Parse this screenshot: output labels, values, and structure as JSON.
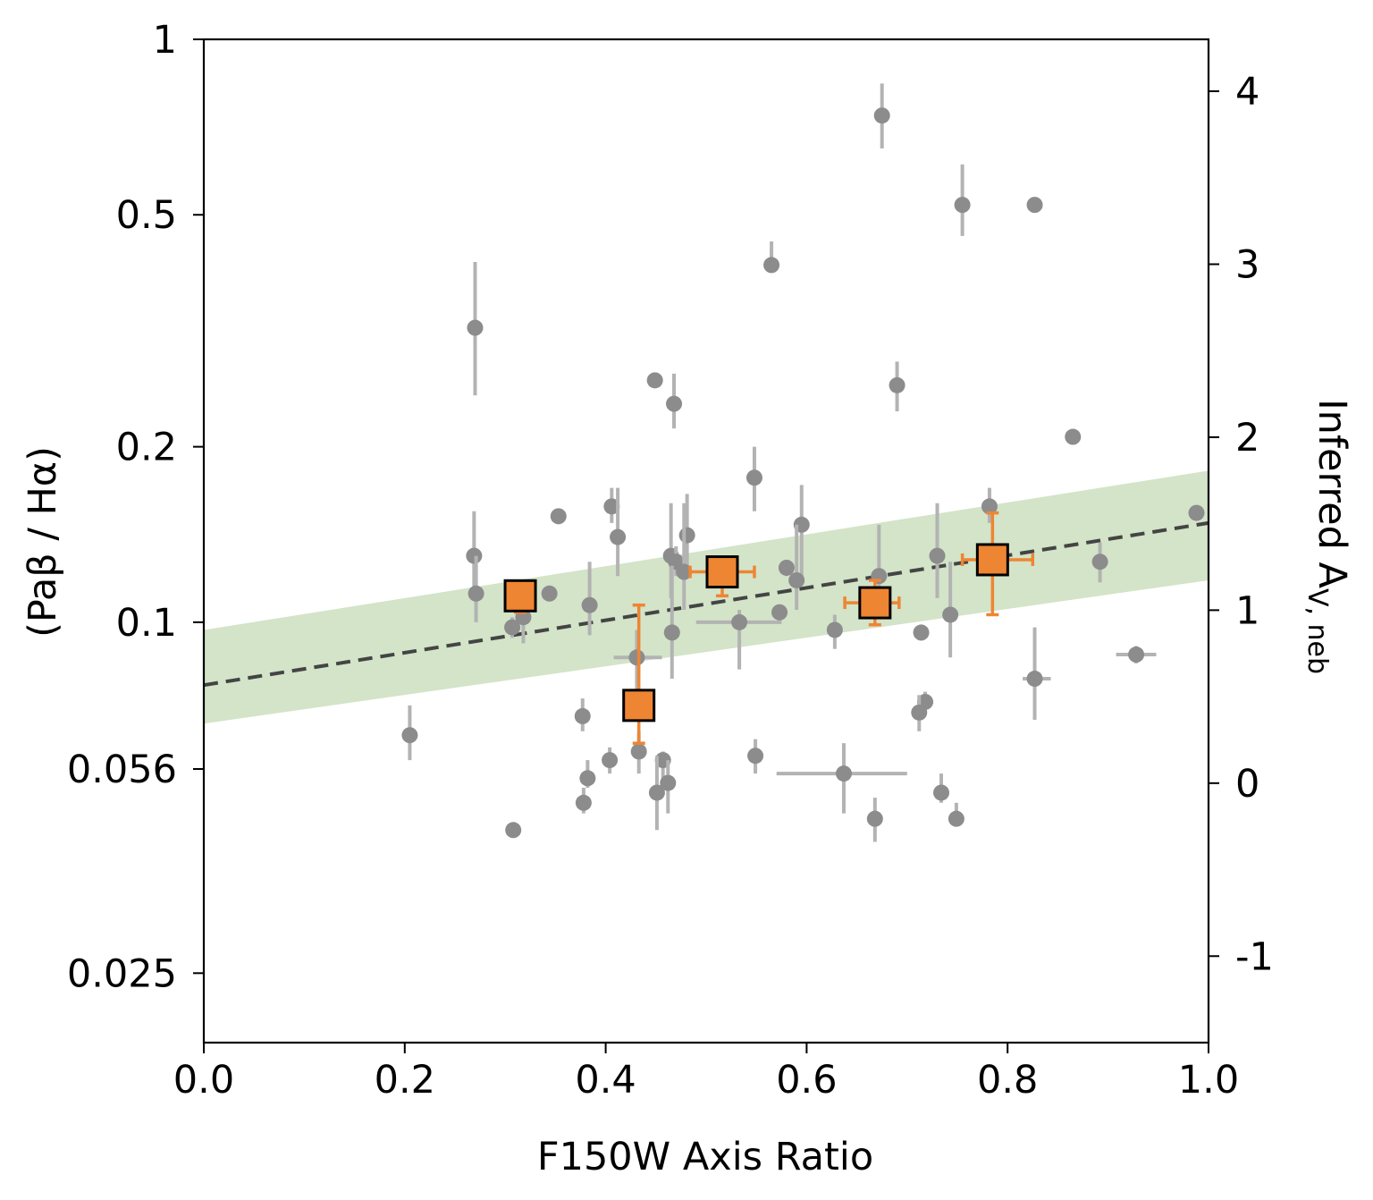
{
  "chart_data": {
    "type": "scatter",
    "xlabel": "F150W Axis Ratio",
    "ylabel": "(Paβ / Hα)",
    "y2label": "Inferred A",
    "y2label_sub": "V, neb",
    "xlim": [
      0.0,
      1.0
    ],
    "ylim": [
      0.019,
      1.0
    ],
    "yscale": "log",
    "y2lim": [
      -1.5,
      4.3
    ],
    "x_ticks": [
      "0.0",
      "0.2",
      "0.4",
      "0.6",
      "0.8",
      "1.0"
    ],
    "y_ticks": [
      {
        "value": 1.0,
        "label": "1"
      },
      {
        "value": 0.5,
        "label": "0.5"
      },
      {
        "value": 0.2,
        "label": "0.2"
      },
      {
        "value": 0.1,
        "label": "0.1"
      },
      {
        "value": 0.056,
        "label": "0.056"
      },
      {
        "value": 0.025,
        "label": "0.025"
      }
    ],
    "y2_ticks": [
      {
        "value": 4,
        "label": "4"
      },
      {
        "value": 3,
        "label": "3"
      },
      {
        "value": 2,
        "label": "2"
      },
      {
        "value": 1,
        "label": "1"
      },
      {
        "value": 0,
        "label": "0"
      },
      {
        "value": -1,
        "label": "-1"
      }
    ],
    "grid": false,
    "colors": {
      "points": "#8c8c8c",
      "point_errors": "#b3b3b3",
      "binned": "#ee8533",
      "binned_edge": "#000000",
      "fit_line": "#444444",
      "band": "#d3e4c9"
    },
    "fit_line": {
      "x": [
        0.0,
        1.0
      ],
      "y": [
        0.078,
        0.148
      ]
    },
    "confidence_band": {
      "x": [
        0.0,
        1.0
      ],
      "lower": [
        0.067,
        0.118
      ],
      "upper": [
        0.097,
        0.182
      ]
    },
    "points": [
      {
        "x": 0.675,
        "y": 0.74,
        "ylo": 0.65,
        "yhi": 0.84
      },
      {
        "x": 0.755,
        "y": 0.52,
        "ylo": 0.46,
        "yhi": 0.61
      },
      {
        "x": 0.827,
        "y": 0.52,
        "ylo": 0.52,
        "yhi": 0.52
      },
      {
        "x": 0.565,
        "y": 0.41,
        "ylo": 0.4,
        "yhi": 0.45
      },
      {
        "x": 0.27,
        "y": 0.32,
        "ylo": 0.245,
        "yhi": 0.415
      },
      {
        "x": 0.449,
        "y": 0.26,
        "ylo": 0.26,
        "yhi": 0.26
      },
      {
        "x": 0.69,
        "y": 0.255,
        "ylo": 0.23,
        "yhi": 0.28
      },
      {
        "x": 0.468,
        "y": 0.237,
        "ylo": 0.215,
        "yhi": 0.267
      },
      {
        "x": 0.865,
        "y": 0.208,
        "ylo": 0.203,
        "yhi": 0.213
      },
      {
        "x": 0.548,
        "y": 0.177,
        "ylo": 0.155,
        "yhi": 0.2
      },
      {
        "x": 0.406,
        "y": 0.158,
        "ylo": 0.148,
        "yhi": 0.17
      },
      {
        "x": 0.353,
        "y": 0.152,
        "ylo": 0.152,
        "yhi": 0.152
      },
      {
        "x": 0.782,
        "y": 0.158,
        "ylo": 0.148,
        "yhi": 0.17
      },
      {
        "x": 0.988,
        "y": 0.154,
        "ylo": 0.154,
        "yhi": 0.154
      },
      {
        "x": 0.595,
        "y": 0.147,
        "ylo": 0.12,
        "yhi": 0.172
      },
      {
        "x": 0.481,
        "y": 0.141,
        "ylo": 0.12,
        "yhi": 0.166
      },
      {
        "x": 0.412,
        "y": 0.14,
        "ylo": 0.12,
        "yhi": 0.17
      },
      {
        "x": 0.269,
        "y": 0.13,
        "ylo": 0.111,
        "yhi": 0.155
      },
      {
        "x": 0.465,
        "y": 0.13,
        "ylo": 0.11,
        "yhi": 0.16
      },
      {
        "x": 0.73,
        "y": 0.13,
        "ylo": 0.11,
        "yhi": 0.16
      },
      {
        "x": 0.892,
        "y": 0.127,
        "ylo": 0.117,
        "yhi": 0.137
      },
      {
        "x": 0.47,
        "y": 0.127,
        "ylo": 0.12,
        "yhi": 0.135
      },
      {
        "x": 0.478,
        "y": 0.122,
        "ylo": 0.105,
        "yhi": 0.16
      },
      {
        "x": 0.58,
        "y": 0.124,
        "ylo": 0.12,
        "yhi": 0.128
      },
      {
        "x": 0.59,
        "y": 0.118,
        "ylo": 0.105,
        "yhi": 0.147
      },
      {
        "x": 0.672,
        "y": 0.12,
        "ylo": 0.107,
        "yhi": 0.147
      },
      {
        "x": 0.271,
        "y": 0.112,
        "ylo": 0.1,
        "yhi": 0.13
      },
      {
        "x": 0.344,
        "y": 0.112,
        "ylo": 0.109,
        "yhi": 0.115
      },
      {
        "x": 0.384,
        "y": 0.107,
        "ylo": 0.095,
        "yhi": 0.127
      },
      {
        "x": 0.573,
        "y": 0.104,
        "ylo": 0.1,
        "yhi": 0.107
      },
      {
        "x": 0.743,
        "y": 0.103,
        "ylo": 0.087,
        "yhi": 0.127
      },
      {
        "x": 0.533,
        "y": 0.1,
        "ylo": 0.083,
        "yhi": 0.105,
        "xlo": 0.49,
        "xhi": 0.575
      },
      {
        "x": 0.307,
        "y": 0.098,
        "ylo": 0.094,
        "yhi": 0.102
      },
      {
        "x": 0.318,
        "y": 0.102,
        "ylo": 0.092,
        "yhi": 0.115
      },
      {
        "x": 0.628,
        "y": 0.097,
        "ylo": 0.09,
        "yhi": 0.103
      },
      {
        "x": 0.466,
        "y": 0.096,
        "ylo": 0.08,
        "yhi": 0.125
      },
      {
        "x": 0.714,
        "y": 0.096,
        "ylo": 0.093,
        "yhi": 0.099
      },
      {
        "x": 0.431,
        "y": 0.087,
        "ylo": 0.07,
        "yhi": 0.097,
        "xlo": 0.408,
        "xhi": 0.456
      },
      {
        "x": 0.928,
        "y": 0.088,
        "ylo": 0.085,
        "yhi": 0.091,
        "xlo": 0.908,
        "xhi": 0.948
      },
      {
        "x": 0.827,
        "y": 0.08,
        "ylo": 0.068,
        "yhi": 0.098,
        "xlo": 0.815,
        "xhi": 0.843
      },
      {
        "x": 0.718,
        "y": 0.073,
        "ylo": 0.07,
        "yhi": 0.076,
        "xlo": 0.71,
        "xhi": 0.726
      },
      {
        "x": 0.377,
        "y": 0.069,
        "ylo": 0.065,
        "yhi": 0.074
      },
      {
        "x": 0.712,
        "y": 0.07,
        "ylo": 0.065,
        "yhi": 0.075
      },
      {
        "x": 0.205,
        "y": 0.064,
        "ylo": 0.058,
        "yhi": 0.072
      },
      {
        "x": 0.549,
        "y": 0.059,
        "ylo": 0.055,
        "yhi": 0.063
      },
      {
        "x": 0.404,
        "y": 0.058,
        "ylo": 0.055,
        "yhi": 0.061
      },
      {
        "x": 0.457,
        "y": 0.058,
        "ylo": 0.054,
        "yhi": 0.06
      },
      {
        "x": 0.433,
        "y": 0.06,
        "ylo": 0.055,
        "yhi": 0.065
      },
      {
        "x": 0.637,
        "y": 0.055,
        "ylo": 0.047,
        "yhi": 0.062,
        "xlo": 0.57,
        "xhi": 0.7
      },
      {
        "x": 0.382,
        "y": 0.054,
        "ylo": 0.052,
        "yhi": 0.058
      },
      {
        "x": 0.462,
        "y": 0.053,
        "ylo": 0.047,
        "yhi": 0.058
      },
      {
        "x": 0.451,
        "y": 0.051,
        "ylo": 0.044,
        "yhi": 0.059
      },
      {
        "x": 0.734,
        "y": 0.051,
        "ylo": 0.049,
        "yhi": 0.055
      },
      {
        "x": 0.378,
        "y": 0.049,
        "ylo": 0.047,
        "yhi": 0.052
      },
      {
        "x": 0.668,
        "y": 0.046,
        "ylo": 0.042,
        "yhi": 0.05
      },
      {
        "x": 0.749,
        "y": 0.046,
        "ylo": 0.045,
        "yhi": 0.049
      },
      {
        "x": 0.308,
        "y": 0.044,
        "ylo": 0.043,
        "yhi": 0.045
      }
    ],
    "binned": [
      {
        "x": 0.315,
        "y": 0.111,
        "ylo": 0.104,
        "yhi": 0.115,
        "xlo": 0.315,
        "xhi": 0.315
      },
      {
        "x": 0.433,
        "y": 0.072,
        "ylo": 0.062,
        "yhi": 0.107,
        "xlo": 0.433,
        "xhi": 0.433
      },
      {
        "x": 0.516,
        "y": 0.122,
        "ylo": 0.111,
        "yhi": 0.127,
        "xlo": 0.484,
        "xhi": 0.548
      },
      {
        "x": 0.668,
        "y": 0.108,
        "ylo": 0.099,
        "yhi": 0.118,
        "xlo": 0.638,
        "xhi": 0.692
      },
      {
        "x": 0.785,
        "y": 0.128,
        "ylo": 0.103,
        "yhi": 0.154,
        "xlo": 0.755,
        "xhi": 0.825
      }
    ]
  }
}
